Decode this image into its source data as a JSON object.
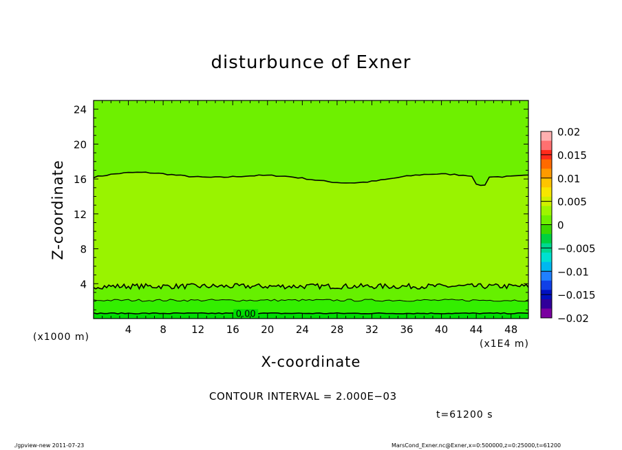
{
  "chart_data": {
    "type": "heatmap",
    "title": "disturbunce of Exner",
    "xlabel": "X-coordinate",
    "ylabel": "Z-coordinate",
    "x_unit": "(x1E4 m)",
    "y_unit": "(x1000 m)",
    "xlim": [
      0,
      50
    ],
    "ylim": [
      0,
      25
    ],
    "x_ticks": [
      4,
      8,
      12,
      16,
      20,
      24,
      28,
      32,
      36,
      40,
      44,
      48
    ],
    "y_ticks": [
      4,
      8,
      12,
      16,
      20,
      24
    ],
    "colorbar": {
      "levels": [
        0.02,
        0.015,
        0.01,
        0.005,
        0,
        -0.005,
        -0.01,
        -0.015,
        -0.02
      ],
      "tick_labels": [
        "0.02",
        "0.015",
        "0.01",
        "0.005",
        "0",
        "−0.005",
        "−0.01",
        "−0.015",
        "−0.02"
      ],
      "colors_top_to_bottom": [
        "#ffb0b0",
        "#ff7070",
        "#ff2a1a",
        "#ff6a00",
        "#ff9a00",
        "#ffc400",
        "#f7e600",
        "#d0f000",
        "#9ef500",
        "#6ef000",
        "#3ad800",
        "#00d040",
        "#00d890",
        "#00e0d0",
        "#00b8f0",
        "#2080ff",
        "#1040e8",
        "#0010c0",
        "#30009a",
        "#7a00a0"
      ]
    },
    "bands": [
      {
        "z_range": [
          0,
          0.6
        ],
        "color": "#00dd00"
      },
      {
        "z_range": [
          0.6,
          2.1
        ],
        "color": "#33ee00"
      },
      {
        "z_range": [
          2.1,
          3.7
        ],
        "color": "#66f000"
      },
      {
        "z_range": [
          3.7,
          16.2
        ],
        "color": "#99f300"
      },
      {
        "z_range": [
          16.2,
          25
        ],
        "color": "#6ef000"
      }
    ],
    "contours": [
      {
        "level": "0.006",
        "z": 16.2
      },
      {
        "level": "0.004",
        "z": 3.7
      },
      {
        "level": "0.002",
        "z": 2.1
      },
      {
        "level": "0.000",
        "z": 0.6,
        "label": "0.00"
      }
    ],
    "annotations": {
      "contour_interval": "CONTOUR INTERVAL = 2.000E−03",
      "time": "t=61200 s",
      "program": "./gpview-new   2011-07-23",
      "source": "MarsCond_Exner.nc@Exner,x=0:500000,z=0:25000,t=61200"
    }
  }
}
